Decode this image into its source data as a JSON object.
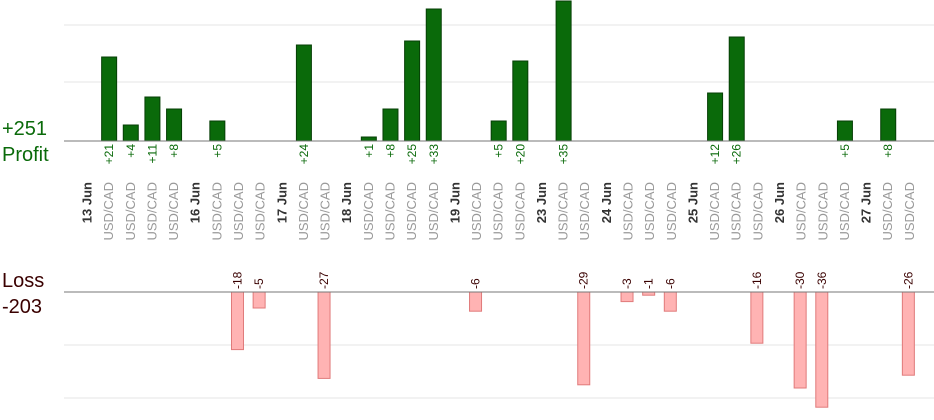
{
  "summary": {
    "profit_total": "+251",
    "profit_label": "Profit",
    "loss_label": "Loss",
    "loss_total": "-203"
  },
  "colors": {
    "profit_bar": "#0a6a0a",
    "profit_bar_edge": "#063f06",
    "profit_text": "#0a6a0a",
    "loss_bar": "#ffb3b3",
    "loss_bar_edge": "#e07a7a",
    "loss_text": "#3a0000",
    "grid": "#e6e6e6",
    "axis": "#777777",
    "pair_text": "#999999",
    "date_text": "#333333"
  },
  "chart_data": {
    "type": "bar",
    "profit_ylim": [
      0,
      35
    ],
    "loss_ylim": [
      -36,
      0
    ],
    "grid": true,
    "dates": [
      "13 Jun",
      "16 Jun",
      "17 Jun",
      "18 Jun",
      "19 Jun",
      "23 Jun",
      "24 Jun",
      "25 Jun",
      "26 Jun",
      "27 Jun"
    ],
    "trades": [
      {
        "date_index": 0,
        "pair": "USD/CAD",
        "value": 21,
        "label": "+21"
      },
      {
        "date_index": 0,
        "pair": "USD/CAD",
        "value": 4,
        "label": "+4"
      },
      {
        "date_index": 0,
        "pair": "USD/CAD",
        "value": 11,
        "label": "+11"
      },
      {
        "date_index": 0,
        "pair": "USD/CAD",
        "value": 8,
        "label": "+8"
      },
      {
        "date_index": 1,
        "pair": "USD/CAD",
        "value": 5,
        "label": "+5"
      },
      {
        "date_index": 1,
        "pair": "USD/CAD",
        "value": -18,
        "label": "-18"
      },
      {
        "date_index": 1,
        "pair": "USD/CAD",
        "value": -5,
        "label": "-5"
      },
      {
        "date_index": 2,
        "pair": "USD/CAD",
        "value": 24,
        "label": "+24"
      },
      {
        "date_index": 2,
        "pair": "USD/CAD",
        "value": -27,
        "label": "-27"
      },
      {
        "date_index": 3,
        "pair": "USD/CAD",
        "value": 1,
        "label": "+1"
      },
      {
        "date_index": 3,
        "pair": "USD/CAD",
        "value": 8,
        "label": "+8"
      },
      {
        "date_index": 3,
        "pair": "USD/CAD",
        "value": 25,
        "label": "+25"
      },
      {
        "date_index": 3,
        "pair": "USD/CAD",
        "value": 33,
        "label": "+33"
      },
      {
        "date_index": 4,
        "pair": "USD/CAD",
        "value": -6,
        "label": "-6"
      },
      {
        "date_index": 4,
        "pair": "USD/CAD",
        "value": 5,
        "label": "+5"
      },
      {
        "date_index": 4,
        "pair": "USD/CAD",
        "value": 20,
        "label": "+20"
      },
      {
        "date_index": 5,
        "pair": "USD/CAD",
        "value": 35,
        "label": "+35"
      },
      {
        "date_index": 5,
        "pair": "USD/CAD",
        "value": -29,
        "label": "-29"
      },
      {
        "date_index": 6,
        "pair": "USD/CAD",
        "value": -3,
        "label": "-3"
      },
      {
        "date_index": 6,
        "pair": "USD/CAD",
        "value": -1,
        "label": "-1"
      },
      {
        "date_index": 6,
        "pair": "USD/CAD",
        "value": -6,
        "label": "-6"
      },
      {
        "date_index": 7,
        "pair": "USD/CAD",
        "value": 12,
        "label": "+12"
      },
      {
        "date_index": 7,
        "pair": "USD/CAD",
        "value": 26,
        "label": "+26"
      },
      {
        "date_index": 7,
        "pair": "USD/CAD",
        "value": -16,
        "label": "-16"
      },
      {
        "date_index": 8,
        "pair": "USD/CAD",
        "value": -30,
        "label": "-30"
      },
      {
        "date_index": 8,
        "pair": "USD/CAD",
        "value": -36,
        "label": "-36"
      },
      {
        "date_index": 8,
        "pair": "USD/CAD",
        "value": 5,
        "label": "+5"
      },
      {
        "date_index": 9,
        "pair": "USD/CAD",
        "value": 8,
        "label": "+8"
      },
      {
        "date_index": 9,
        "pair": "USD/CAD",
        "value": -26,
        "label": "-26"
      }
    ]
  }
}
